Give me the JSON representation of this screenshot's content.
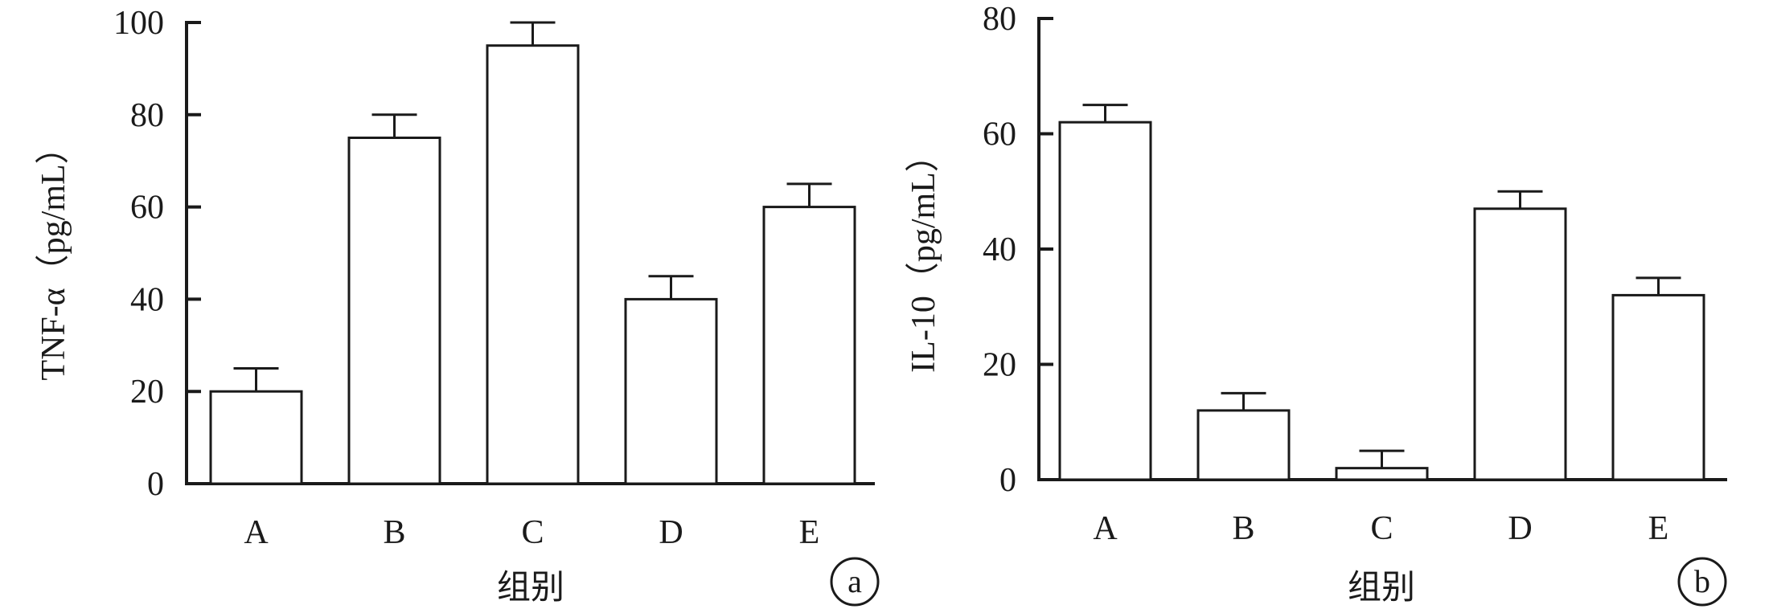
{
  "chart_data": [
    {
      "type": "bar",
      "panel_label": "a",
      "categories": [
        "A",
        "B",
        "C",
        "D",
        "E"
      ],
      "values": [
        20,
        75,
        95,
        40,
        60
      ],
      "errors": [
        5,
        5,
        5,
        5,
        5
      ],
      "xlabel": "组别",
      "ylabel": "TNF-α（pg/mL）",
      "ylim": [
        0,
        100
      ],
      "yticks": [
        0,
        20,
        40,
        60,
        80,
        100
      ]
    },
    {
      "type": "bar",
      "panel_label": "b",
      "categories": [
        "A",
        "B",
        "C",
        "D",
        "E"
      ],
      "values": [
        62,
        12,
        2,
        47,
        32
      ],
      "errors": [
        3,
        3,
        3,
        3,
        3
      ],
      "xlabel": "组别",
      "ylabel": "IL-10（pg/mL）",
      "ylim": [
        0,
        80
      ],
      "yticks": [
        0,
        20,
        40,
        60,
        80
      ]
    }
  ]
}
